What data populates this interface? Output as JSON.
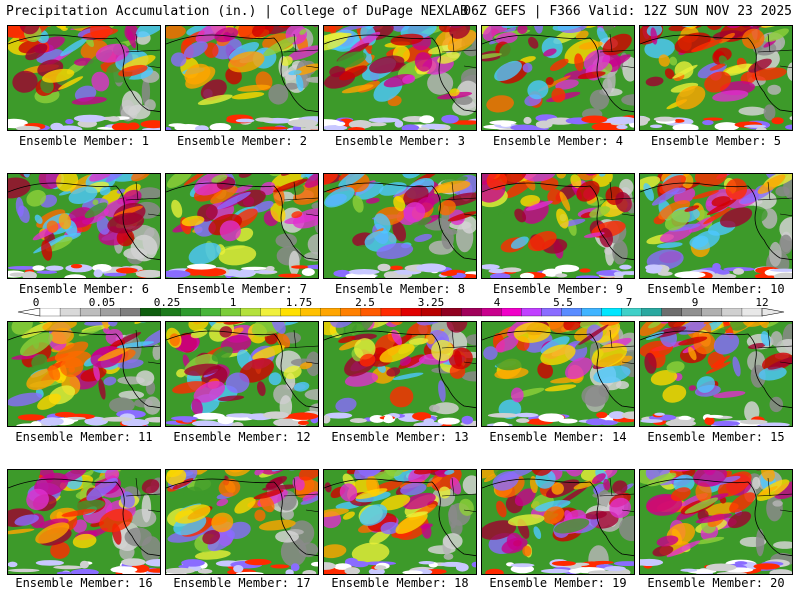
{
  "header": {
    "title": "Precipitation Accumulation (in.) | College of DuPage NEXLAB",
    "run_info": "06Z GEFS | F366 Valid: 12Z SUN NOV 23 2025"
  },
  "members": [
    {
      "label": "Ensemble Member: 1"
    },
    {
      "label": "Ensemble Member: 2"
    },
    {
      "label": "Ensemble Member: 3"
    },
    {
      "label": "Ensemble Member: 4"
    },
    {
      "label": "Ensemble Member: 5"
    },
    {
      "label": "Ensemble Member: 6"
    },
    {
      "label": "Ensemble Member: 7"
    },
    {
      "label": "Ensemble Member: 8"
    },
    {
      "label": "Ensemble Member: 9"
    },
    {
      "label": "Ensemble Member: 10"
    },
    {
      "label": "Ensemble Member: 11"
    },
    {
      "label": "Ensemble Member: 12"
    },
    {
      "label": "Ensemble Member: 13"
    },
    {
      "label": "Ensemble Member: 14"
    },
    {
      "label": "Ensemble Member: 15"
    },
    {
      "label": "Ensemble Member: 16"
    },
    {
      "label": "Ensemble Member: 17"
    },
    {
      "label": "Ensemble Member: 18"
    },
    {
      "label": "Ensemble Member: 19"
    },
    {
      "label": "Ensemble Member: 20"
    }
  ],
  "legend": {
    "tick_labels": [
      "0",
      "0.05",
      "0.25",
      "1",
      "1.75",
      "2.5",
      "3.25",
      "4",
      "5.5",
      "7",
      "9",
      "12"
    ],
    "colors": [
      "#ffffff",
      "#d9d9d9",
      "#bdbdbd",
      "#a0a0a0",
      "#7f7f7f",
      "#0f5e0f",
      "#1c7a1c",
      "#2e9a2e",
      "#48b53a",
      "#7ccd3a",
      "#b4e13c",
      "#f0f03c",
      "#ffe000",
      "#ffc000",
      "#ffa500",
      "#ff8000",
      "#ff5a00",
      "#ff2a00",
      "#e00000",
      "#b80000",
      "#900020",
      "#a0005a",
      "#c8008c",
      "#f000c8",
      "#c040ff",
      "#8a6cff",
      "#5a8cff",
      "#40b4ff",
      "#00e6ff",
      "#40d0c8",
      "#2aa8a0",
      "#6e6e6e",
      "#909090",
      "#b0b0b0",
      "#d0d0d0",
      "#e8e8e8"
    ]
  }
}
